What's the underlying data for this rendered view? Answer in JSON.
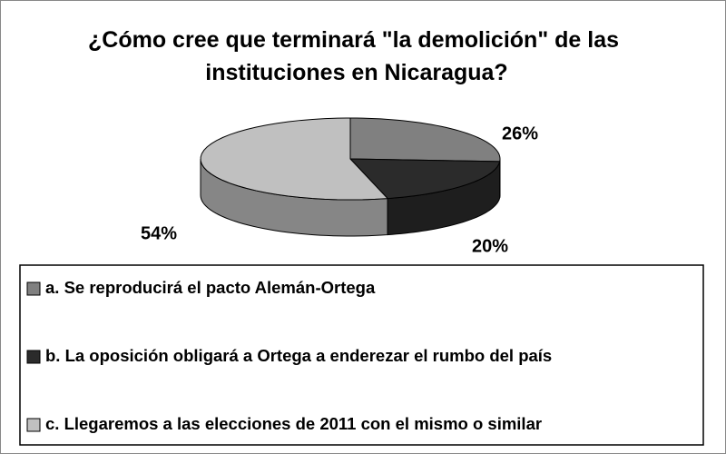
{
  "chart_data": {
    "type": "pie",
    "title": "¿Cómo cree que terminará \"la demolición\" de las instituciones en Nicaragua?",
    "categories": [
      "a. Se reproducirá el pacto Alemán-Ortega",
      "b. La oposición obligará a Ortega a enderezar el rumbo del país",
      "c. Llegaremos a las elecciones de 2011 con el mismo o similar"
    ],
    "values": [
      26,
      20,
      54
    ],
    "value_labels": [
      "26%",
      "20%",
      "54%"
    ],
    "colors": [
      "#808080",
      "#2b2b2b",
      "#c0c0c0"
    ],
    "legend": "bottom"
  }
}
